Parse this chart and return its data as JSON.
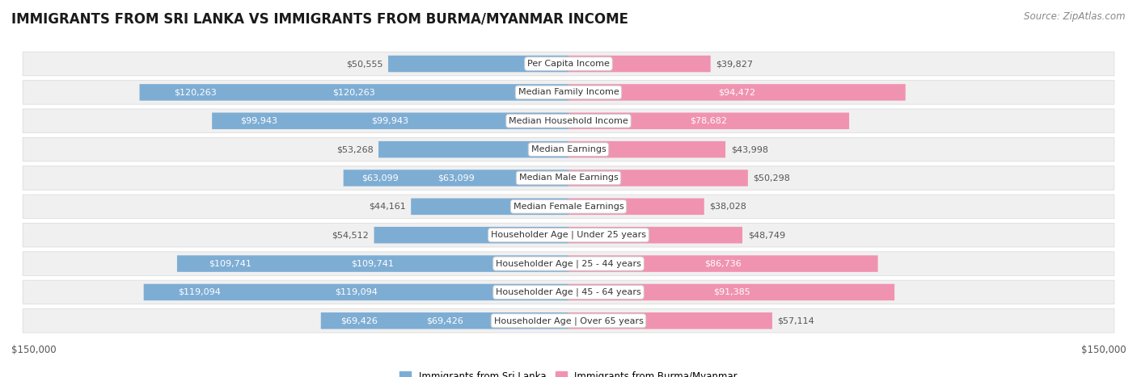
{
  "title": "IMMIGRANTS FROM SRI LANKA VS IMMIGRANTS FROM BURMA/MYANMAR INCOME",
  "source": "Source: ZipAtlas.com",
  "categories": [
    "Per Capita Income",
    "Median Family Income",
    "Median Household Income",
    "Median Earnings",
    "Median Male Earnings",
    "Median Female Earnings",
    "Householder Age | Under 25 years",
    "Householder Age | 25 - 44 years",
    "Householder Age | 45 - 64 years",
    "Householder Age | Over 65 years"
  ],
  "sri_lanka_values": [
    50555,
    120263,
    99943,
    53268,
    63099,
    44161,
    54512,
    109741,
    119094,
    69426
  ],
  "burma_values": [
    39827,
    94472,
    78682,
    43998,
    50298,
    38028,
    48749,
    86736,
    91385,
    57114
  ],
  "sri_lanka_color": "#7eadd4",
  "burma_color": "#f093b0",
  "max_value": 150000,
  "label_color_outside": "#555555",
  "bg_row_color": "#f0f0f0",
  "bg_row_edge": "#d8d8d8",
  "legend_sri_lanka": "Immigrants from Sri Lanka",
  "legend_burma": "Immigrants from Burma/Myanmar",
  "title_fontsize": 12,
  "source_fontsize": 8.5,
  "label_fontsize": 8,
  "category_fontsize": 8,
  "axis_label_fontsize": 8.5,
  "inside_label_threshold": 60000
}
